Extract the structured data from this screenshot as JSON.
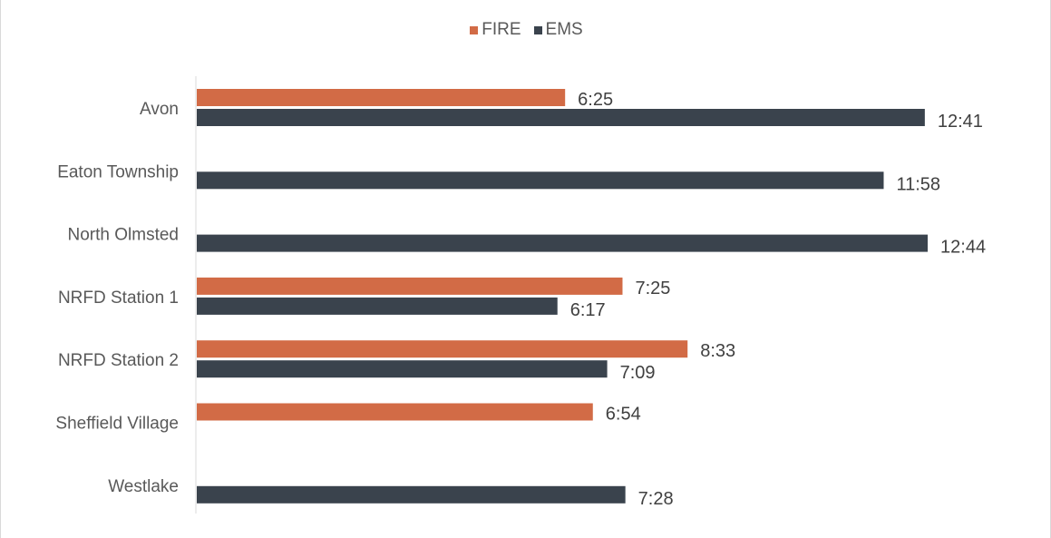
{
  "chart_data": {
    "type": "bar",
    "orientation": "horizontal",
    "title": "",
    "xlabel": "",
    "ylabel": "",
    "categories": [
      "Avon",
      "Eaton Township",
      "North Olmsted",
      "NRFD Station 1",
      "NRFD Station 2",
      "Sheffield Village",
      "Westlake"
    ],
    "series": [
      {
        "name": "FIRE",
        "color": "#D26B46",
        "values": [
          6.4167,
          null,
          null,
          7.4167,
          8.55,
          6.9,
          null
        ],
        "labels": [
          "6:25",
          "",
          "",
          "7:25",
          "8:33",
          "6:54",
          ""
        ]
      },
      {
        "name": "EMS",
        "color": "#3A434D",
        "values": [
          12.6833,
          11.9667,
          12.7333,
          6.2833,
          7.15,
          null,
          7.4667
        ],
        "labels": [
          "12:41",
          "11:58",
          "12:44",
          "6:17",
          "7:09",
          "",
          "7:28"
        ]
      }
    ],
    "value_unit": "minutes (m:ss)",
    "xlim": [
      0,
      14
    ],
    "grid": false,
    "legend_position": "top"
  }
}
